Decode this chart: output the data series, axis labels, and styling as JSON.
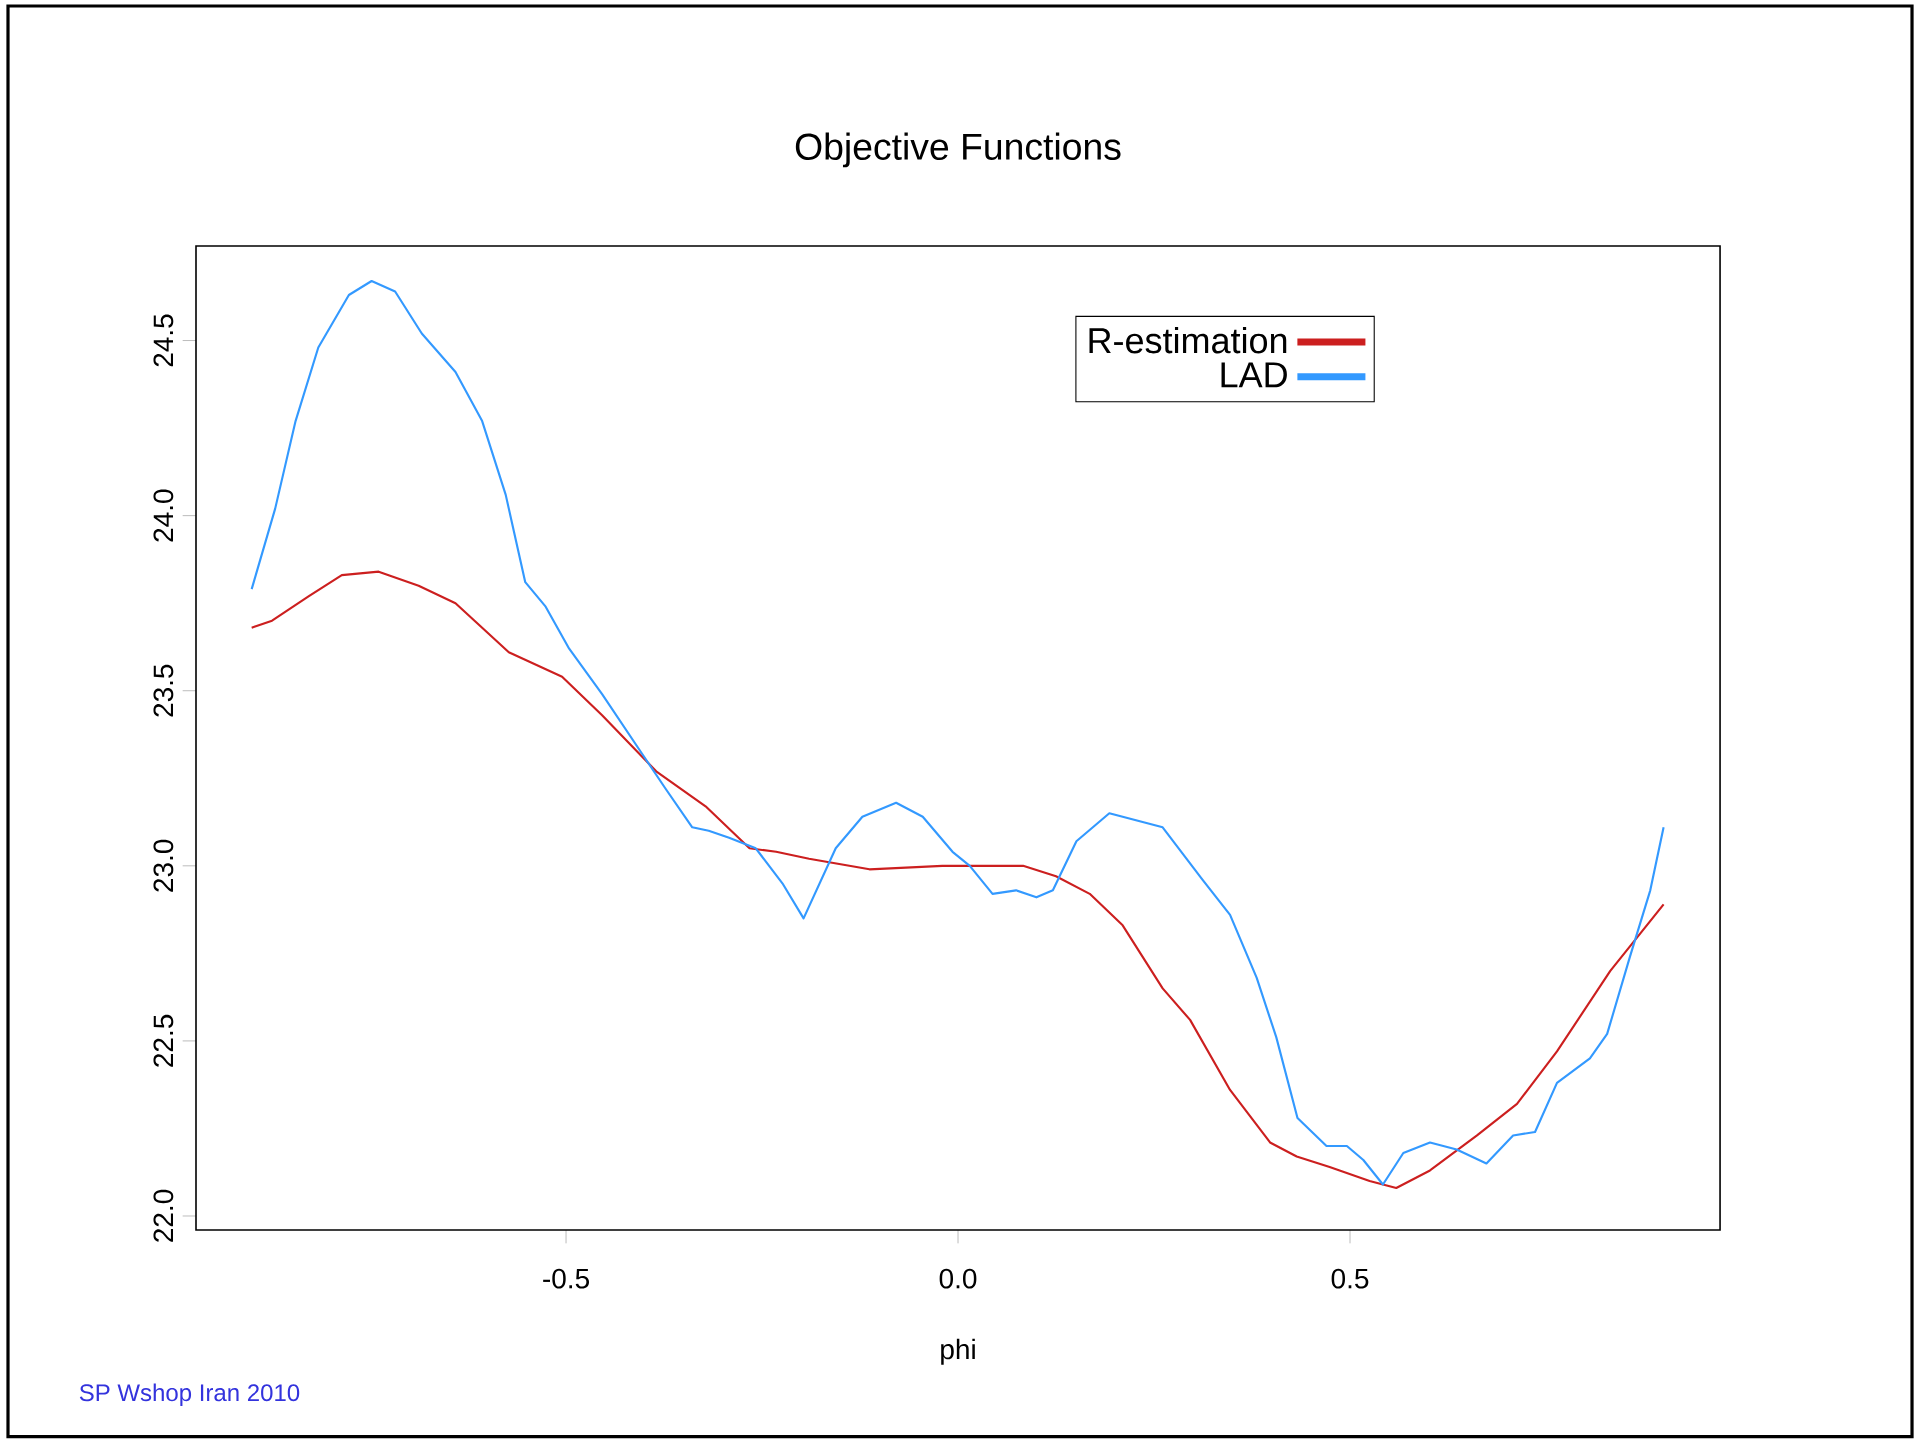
{
  "chart_data": {
    "type": "line",
    "title": "Objective Functions",
    "xlabel": "phi",
    "annotations": [
      "SP Wshop Iran 2010"
    ],
    "xlim": [
      -0.972,
      0.972
    ],
    "ylim": [
      21.96,
      24.77
    ],
    "xticks": [
      -0.5,
      {
        "value": 0,
        "label": "0.0"
      },
      0.5
    ],
    "yticks": [
      {
        "value": 22,
        "label": "22.0"
      },
      22.5,
      {
        "value": 23,
        "label": "23.0"
      },
      23.5,
      {
        "value": 24,
        "label": "24.0"
      },
      24.5
    ],
    "legend": "top right",
    "series": [
      {
        "name": "R-estimation",
        "color": "#cc1f1f",
        "x": [
          -0.901,
          -0.875,
          -0.828,
          -0.786,
          -0.739,
          -0.688,
          -0.641,
          -0.607,
          -0.573,
          -0.505,
          -0.454,
          -0.385,
          -0.322,
          -0.266,
          -0.232,
          -0.19,
          -0.113,
          -0.02,
          0.083,
          0.125,
          0.168,
          0.21,
          0.261,
          0.296,
          0.347,
          0.398,
          0.432,
          0.474,
          0.525,
          0.559,
          0.602,
          0.662,
          0.713,
          0.764,
          0.832,
          0.9
        ],
        "values": [
          23.68,
          23.7,
          23.77,
          23.83,
          23.84,
          23.8,
          23.75,
          23.68,
          23.61,
          23.54,
          23.43,
          23.27,
          23.17,
          23.05,
          23.04,
          23.02,
          22.99,
          23.0,
          23.0,
          22.97,
          22.92,
          22.83,
          22.65,
          22.56,
          22.36,
          22.21,
          22.17,
          22.14,
          22.1,
          22.08,
          22.13,
          22.23,
          22.32,
          22.47,
          22.7,
          22.89
        ]
      },
      {
        "name": "LAD",
        "color": "#3399ff",
        "x": [
          -0.901,
          -0.871,
          -0.845,
          -0.816,
          -0.777,
          -0.748,
          -0.718,
          -0.684,
          -0.641,
          -0.607,
          -0.577,
          -0.552,
          -0.526,
          -0.496,
          -0.454,
          -0.403,
          -0.373,
          -0.339,
          -0.318,
          -0.292,
          -0.258,
          -0.224,
          -0.197,
          -0.156,
          -0.122,
          -0.079,
          -0.045,
          -0.007,
          0.015,
          0.044,
          0.074,
          0.1,
          0.121,
          0.151,
          0.193,
          0.227,
          0.261,
          0.312,
          0.347,
          0.381,
          0.406,
          0.433,
          0.47,
          0.496,
          0.517,
          0.542,
          0.568,
          0.602,
          0.636,
          0.674,
          0.708,
          0.736,
          0.764,
          0.806,
          0.828,
          0.857,
          0.883,
          0.9
        ],
        "values": [
          23.79,
          24.02,
          24.27,
          24.48,
          24.63,
          24.67,
          24.64,
          24.52,
          24.41,
          24.27,
          24.06,
          23.81,
          23.74,
          23.62,
          23.49,
          23.32,
          23.22,
          23.11,
          23.1,
          23.08,
          23.05,
          22.95,
          22.85,
          23.05,
          23.14,
          23.18,
          23.14,
          23.04,
          23.0,
          22.92,
          22.93,
          22.91,
          22.93,
          23.07,
          23.15,
          23.13,
          23.11,
          22.96,
          22.86,
          22.68,
          22.51,
          22.28,
          22.2,
          22.2,
          22.16,
          22.09,
          22.18,
          22.21,
          22.19,
          22.15,
          22.23,
          22.24,
          22.38,
          22.45,
          22.52,
          22.74,
          22.93,
          23.11
        ]
      }
    ]
  }
}
